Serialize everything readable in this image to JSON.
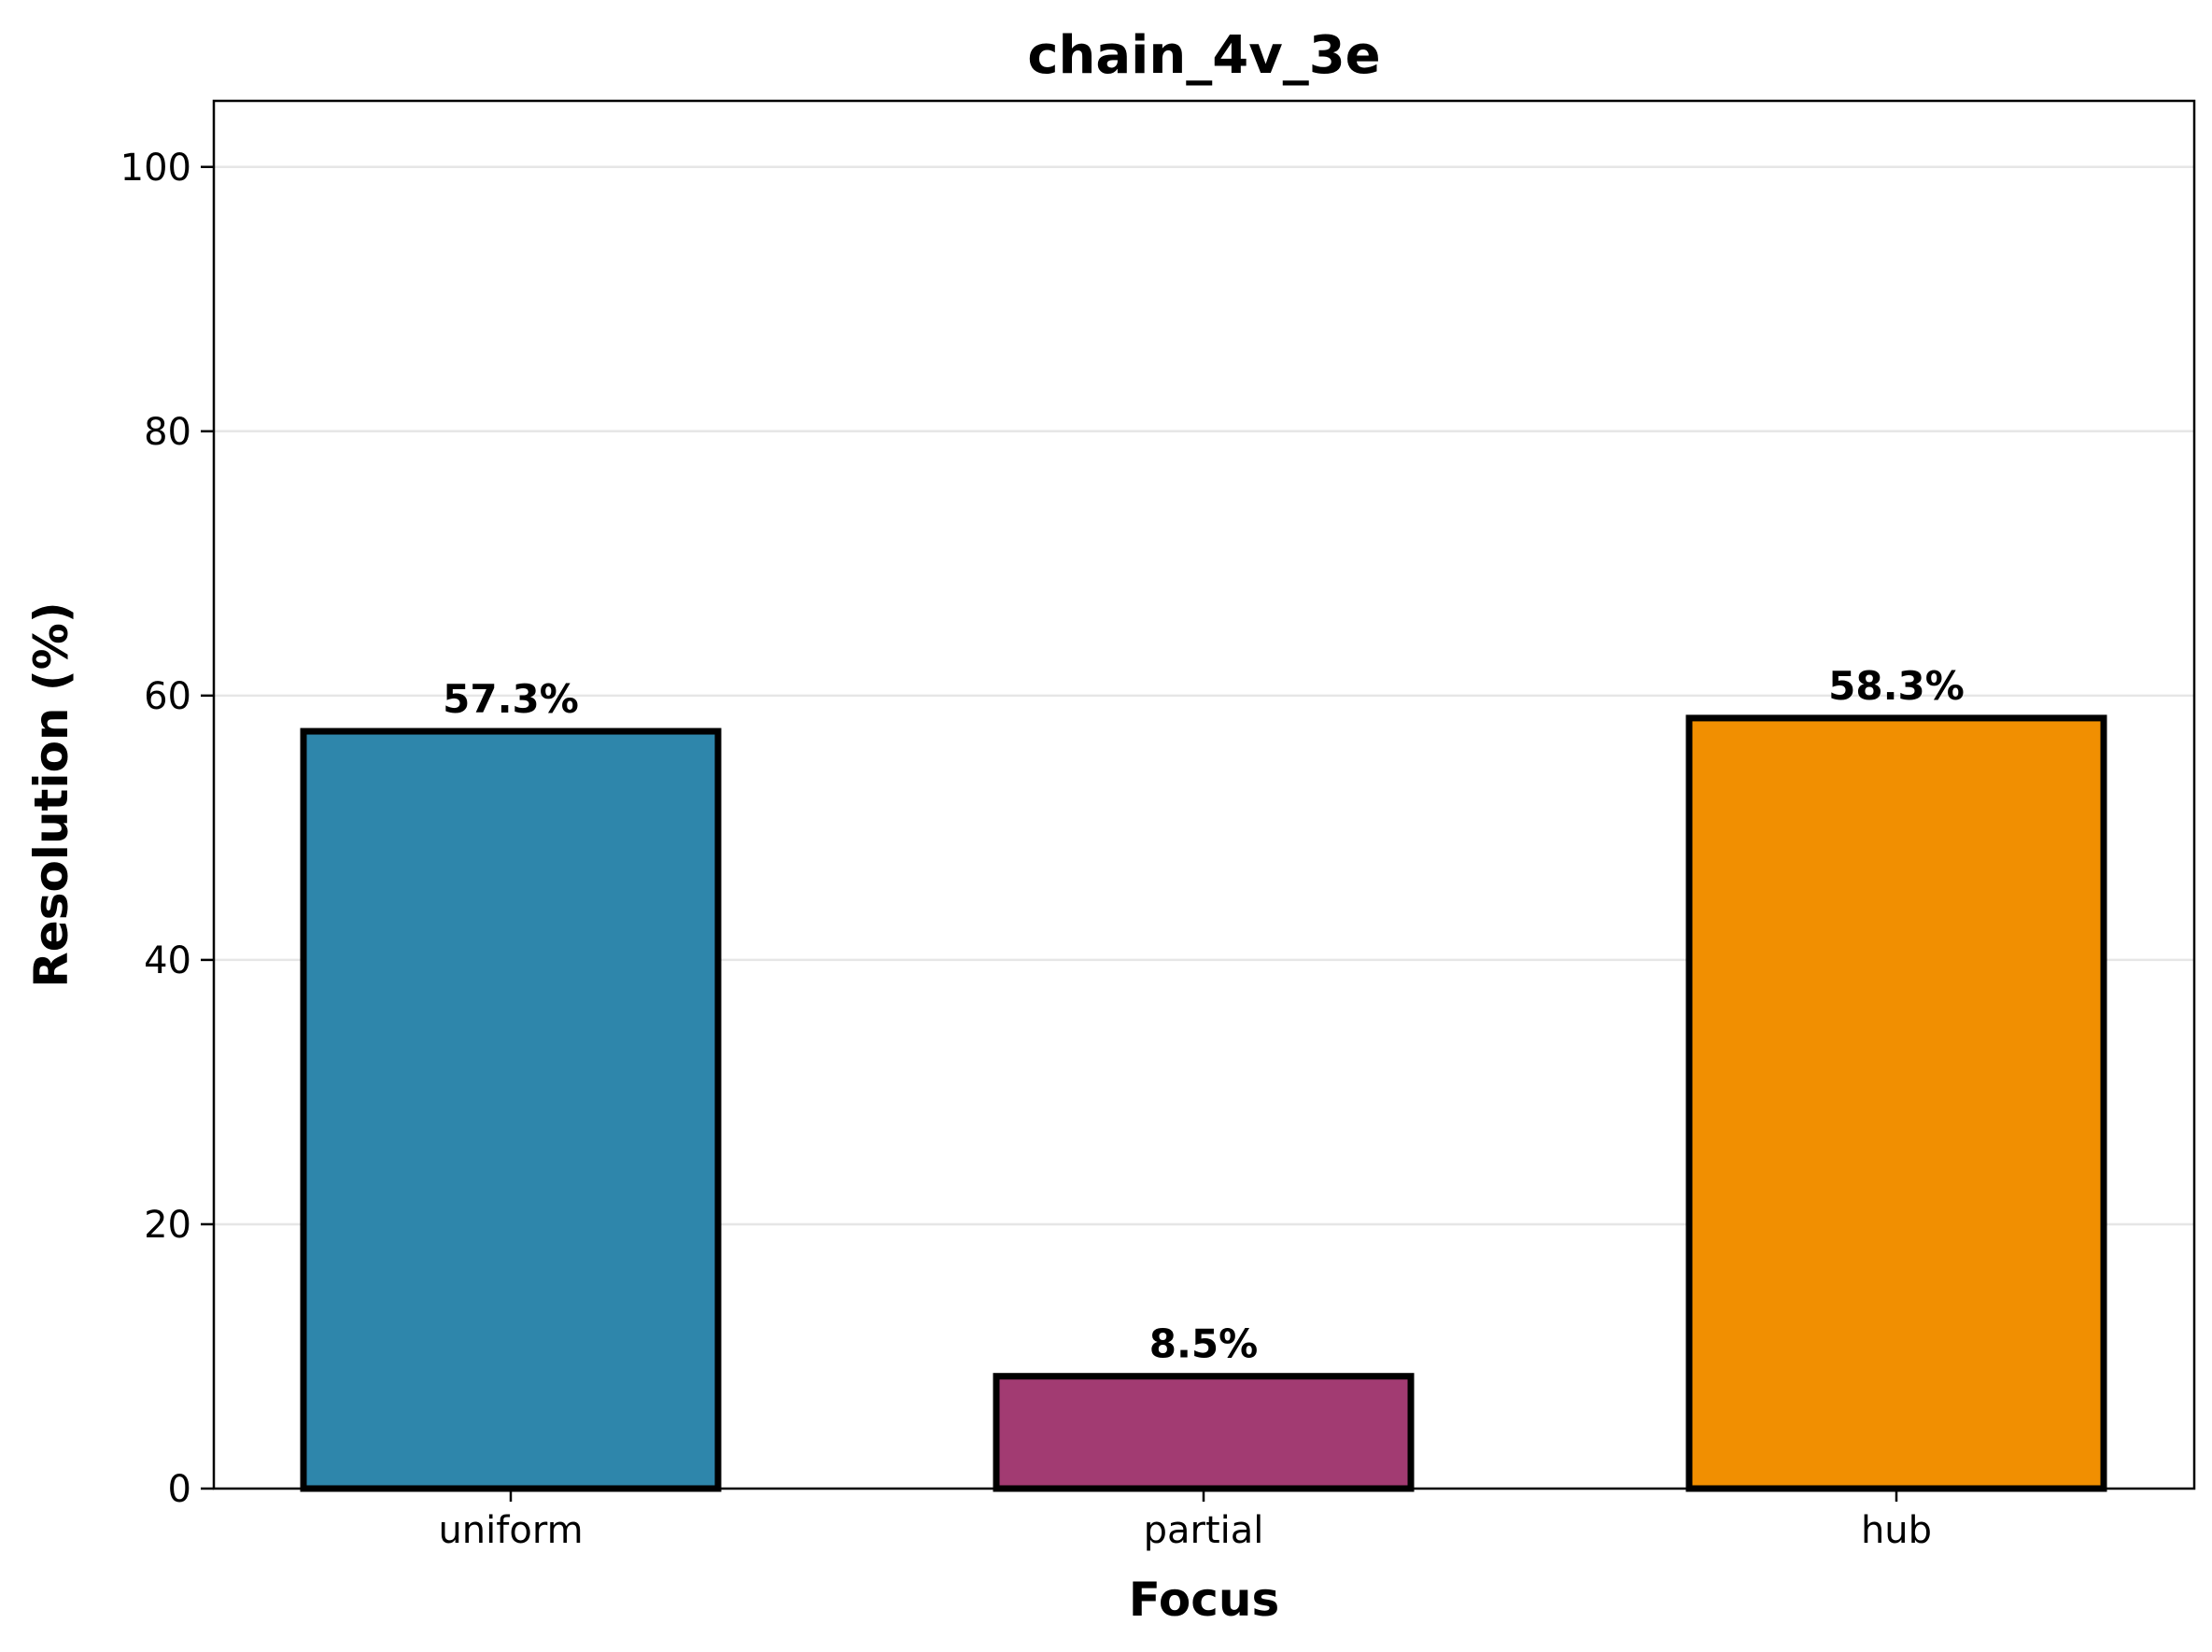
{
  "chart_data": {
    "type": "bar",
    "title": "chain_4v_3e",
    "xlabel": "Focus",
    "ylabel": "Resolution (%)",
    "categories": [
      "uniform",
      "partial",
      "hub"
    ],
    "values": [
      57.3,
      8.5,
      58.3
    ],
    "value_labels": [
      "57.3%",
      "8.5%",
      "58.3%"
    ],
    "colors": [
      "#2E86AB",
      "#A23B72",
      "#F18F01"
    ],
    "edge_color": "#000000",
    "ylim": [
      0,
      105
    ],
    "yticks": [
      0,
      20,
      40,
      60,
      80,
      100
    ],
    "ytick_labels": [
      "0",
      "20",
      "40",
      "60",
      "80",
      "100"
    ],
    "grid": "y",
    "grid_color": "#e6e6e6"
  }
}
